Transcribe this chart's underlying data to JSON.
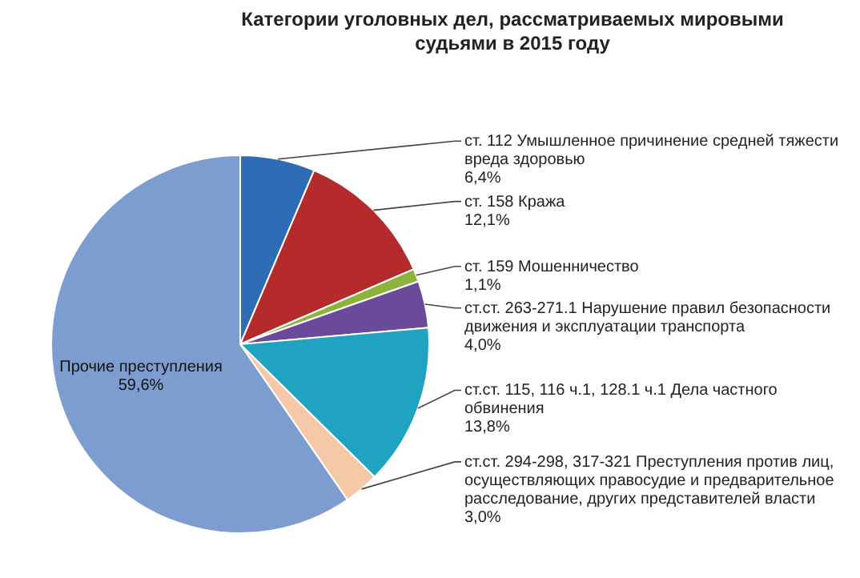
{
  "chart_data": {
    "type": "pie",
    "title": "Категории уголовных дел, рассматриваемых мировыми судьями в 2015 году",
    "categories": [
      "ст. 112 Умышленное причинение средней тяжести вреда здоровью",
      "ст. 158 Кража",
      "ст. 159 Мошенничество",
      "ст.ст. 263-271.1 Нарушение правил безопасности движения и эксплуатации транспорта",
      "ст.ст. 115, 116 ч.1, 128.1 ч.1 Дела частного обвинения",
      "ст.ст. 294-298, 317-321 Преступления против лиц, осуществляющих правосудие и предварительное расследование, других представителей власти",
      "Прочие преступления"
    ],
    "values": [
      6.4,
      12.1,
      1.1,
      4.0,
      13.8,
      3.0,
      59.6
    ],
    "value_labels": [
      "6,4%",
      "12,1%",
      "1,1%",
      "4,0%",
      "13,8%",
      "3,0%",
      "59,6%"
    ],
    "colors": [
      "#2e6db5",
      "#b52a2a",
      "#8db33a",
      "#6a4a9a",
      "#1fa3c0",
      "#f5c9a8",
      "#7d9ccf"
    ],
    "legend": false
  }
}
